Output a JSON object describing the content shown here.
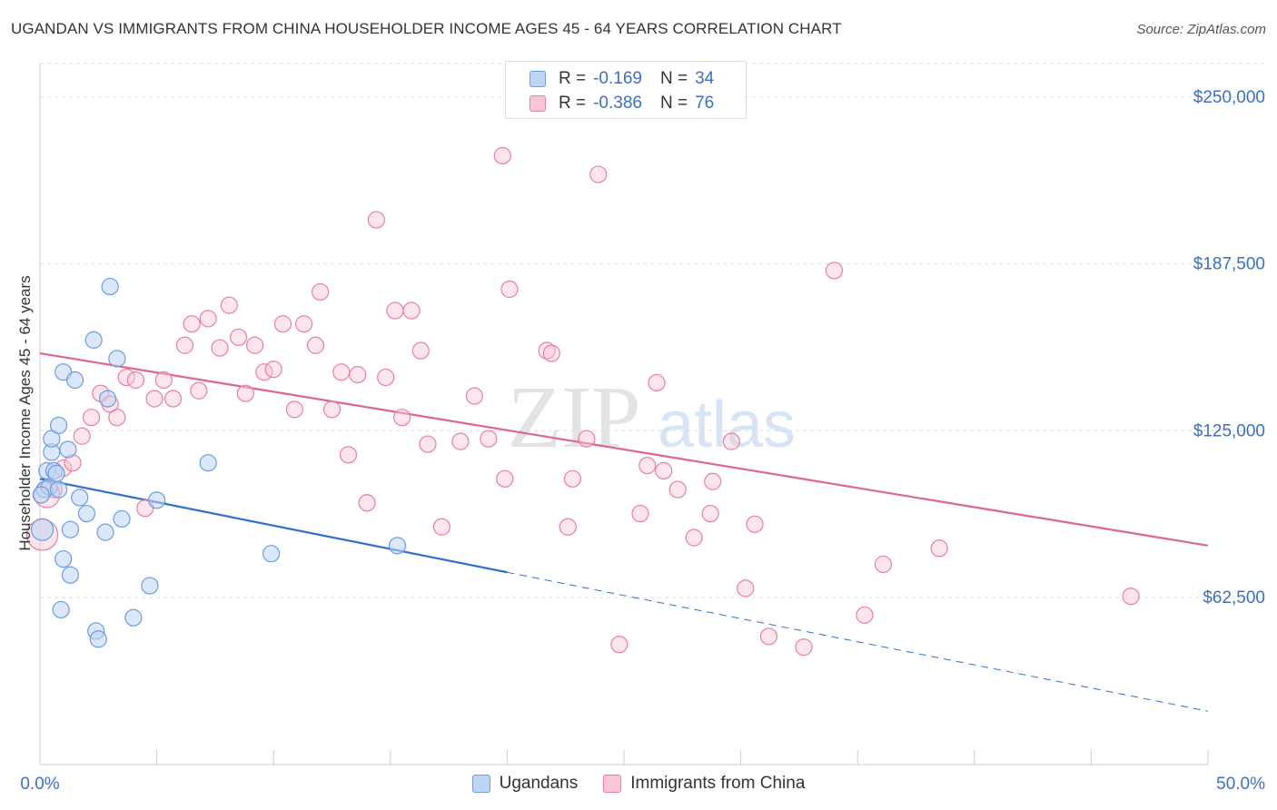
{
  "title": "UGANDAN VS IMMIGRANTS FROM CHINA HOUSEHOLDER INCOME AGES 45 - 64 YEARS CORRELATION CHART",
  "source": "Source: ZipAtlas.com",
  "watermark": {
    "zip": "ZIP",
    "atlas": "atlas"
  },
  "legend": {
    "r_label": "R =",
    "n_label": "N =",
    "rows": [
      {
        "name": "Ugandans",
        "r": "-0.169",
        "n": "34",
        "color": "#6b9be0",
        "fill": "#bdd4f5"
      },
      {
        "name": "Immigrants from China",
        "r": "-0.386",
        "n": "76",
        "color": "#e87ea0",
        "fill": "#f8c6d5"
      }
    ]
  },
  "chart_data": {
    "type": "scatter",
    "title": "UGANDAN VS IMMIGRANTS FROM CHINA HOUSEHOLDER INCOME AGES 45 - 64 YEARS CORRELATION CHART",
    "xlabel": "",
    "ylabel": "Householder Income Ages 45 - 64 years",
    "xlim": [
      0,
      50
    ],
    "ylim": [
      0,
      262500
    ],
    "x_tick_labels": [
      "0.0%",
      "50.0%"
    ],
    "y_ticks": [
      62500,
      125000,
      187500,
      250000
    ],
    "y_tick_labels": [
      "$62,500",
      "$125,000",
      "$187,500",
      "$250,000"
    ],
    "grid": true,
    "legend_position": "top-center",
    "series": [
      {
        "name": "Ugandans",
        "color": "#6b9be0",
        "trend": {
          "x_start": 0,
          "y_start": 107000,
          "x_solid_end": 20,
          "y_solid_end": 72000,
          "x_end": 50,
          "y_end": 20000
        },
        "points": [
          [
            0.1,
            88000
          ],
          [
            0.2,
            103000
          ],
          [
            0.3,
            110000
          ],
          [
            0.4,
            104000
          ],
          [
            0.5,
            117000
          ],
          [
            0.5,
            122000
          ],
          [
            0.6,
            110000
          ],
          [
            0.7,
            109000
          ],
          [
            0.8,
            103000
          ],
          [
            0.8,
            127000
          ],
          [
            0.9,
            58000
          ],
          [
            1.0,
            77000
          ],
          [
            1.0,
            147000
          ],
          [
            1.2,
            118000
          ],
          [
            1.3,
            88000
          ],
          [
            1.3,
            71000
          ],
          [
            1.5,
            144000
          ],
          [
            1.7,
            100000
          ],
          [
            2.0,
            94000
          ],
          [
            2.3,
            159000
          ],
          [
            2.4,
            50000
          ],
          [
            2.5,
            47000
          ],
          [
            2.8,
            87000
          ],
          [
            2.9,
            137000
          ],
          [
            3.0,
            179000
          ],
          [
            3.3,
            152000
          ],
          [
            3.5,
            92000
          ],
          [
            4.0,
            55000
          ],
          [
            4.7,
            67000
          ],
          [
            5.0,
            99000
          ],
          [
            7.2,
            113000
          ],
          [
            9.9,
            79000
          ],
          [
            15.3,
            82000
          ],
          [
            0.05,
            101000
          ]
        ]
      },
      {
        "name": "Immigrants from China",
        "color": "#e87ea0",
        "trend": {
          "x_start": 0,
          "y_start": 154000,
          "x_end": 50,
          "y_end": 82000
        },
        "points": [
          [
            0.1,
            86000
          ],
          [
            0.6,
            103000
          ],
          [
            1.0,
            111000
          ],
          [
            1.4,
            113000
          ],
          [
            1.8,
            123000
          ],
          [
            2.2,
            130000
          ],
          [
            2.6,
            139000
          ],
          [
            3.0,
            135000
          ],
          [
            3.3,
            130000
          ],
          [
            3.7,
            145000
          ],
          [
            4.1,
            144000
          ],
          [
            4.5,
            96000
          ],
          [
            4.9,
            137000
          ],
          [
            5.3,
            144000
          ],
          [
            5.7,
            137000
          ],
          [
            6.2,
            157000
          ],
          [
            6.5,
            165000
          ],
          [
            6.8,
            140000
          ],
          [
            7.2,
            167000
          ],
          [
            7.7,
            156000
          ],
          [
            8.1,
            172000
          ],
          [
            8.5,
            160000
          ],
          [
            8.8,
            139000
          ],
          [
            9.2,
            157000
          ],
          [
            9.6,
            147000
          ],
          [
            10.0,
            148000
          ],
          [
            10.4,
            165000
          ],
          [
            10.9,
            133000
          ],
          [
            11.3,
            165000
          ],
          [
            11.8,
            157000
          ],
          [
            12.0,
            177000
          ],
          [
            12.5,
            133000
          ],
          [
            12.9,
            147000
          ],
          [
            13.2,
            116000
          ],
          [
            13.6,
            146000
          ],
          [
            14.0,
            98000
          ],
          [
            14.4,
            204000
          ],
          [
            14.8,
            145000
          ],
          [
            15.2,
            170000
          ],
          [
            15.5,
            130000
          ],
          [
            15.9,
            170000
          ],
          [
            16.3,
            155000
          ],
          [
            16.6,
            120000
          ],
          [
            17.2,
            89000
          ],
          [
            18.0,
            121000
          ],
          [
            18.6,
            138000
          ],
          [
            19.2,
            122000
          ],
          [
            19.8,
            228000
          ],
          [
            19.9,
            107000
          ],
          [
            20.1,
            178000
          ],
          [
            21.7,
            155000
          ],
          [
            21.9,
            154000
          ],
          [
            22.6,
            89000
          ],
          [
            22.8,
            107000
          ],
          [
            23.4,
            122000
          ],
          [
            23.9,
            221000
          ],
          [
            24.8,
            45000
          ],
          [
            25.7,
            94000
          ],
          [
            26.0,
            112000
          ],
          [
            26.4,
            143000
          ],
          [
            26.7,
            110000
          ],
          [
            27.3,
            103000
          ],
          [
            28.0,
            85000
          ],
          [
            28.7,
            94000
          ],
          [
            28.8,
            106000
          ],
          [
            29.6,
            121000
          ],
          [
            30.2,
            66000
          ],
          [
            30.6,
            90000
          ],
          [
            31.2,
            48000
          ],
          [
            32.7,
            44000
          ],
          [
            34.0,
            185000
          ],
          [
            35.3,
            56000
          ],
          [
            36.1,
            75000
          ],
          [
            38.5,
            81000
          ],
          [
            46.7,
            63000
          ],
          [
            0.3,
            101000
          ]
        ]
      }
    ]
  }
}
